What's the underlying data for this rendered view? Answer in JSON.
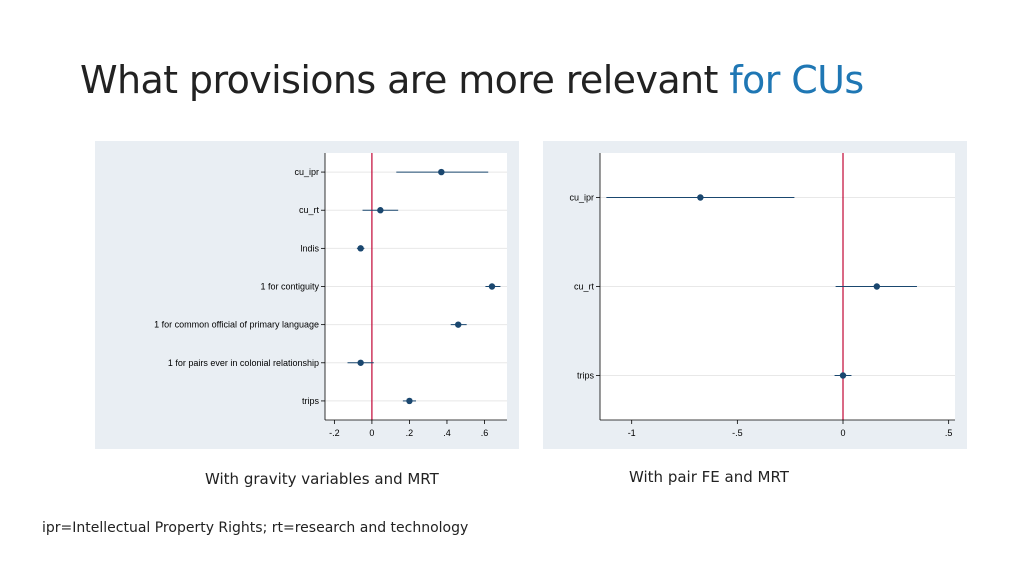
{
  "slide": {
    "title_main": "What provisions are more relevant ",
    "title_accent": "for CUs",
    "caption_left": "With gravity variables and MRT",
    "caption_right": "With pair FE and MRT",
    "footnote": "ipr=Intellectual Property Rights; rt=research and technology"
  },
  "colors": {
    "background_outer": "#e9eef3",
    "plot_background": "#ffffff",
    "marker": "#1a476f",
    "reference_line": "#c10534",
    "grid": "#e8e8e8",
    "axis": "#000000",
    "title_accent": "#1f77b4"
  },
  "chart_data": [
    {
      "type": "scatter",
      "subtype": "coefficient-plot",
      "title": "",
      "xlabel": "",
      "ylabel": "",
      "xlim": [
        -0.25,
        0.72
      ],
      "xticks": [
        -0.2,
        0,
        0.2,
        0.4,
        0.6
      ],
      "xtick_labels": [
        "-.2",
        "0",
        ".2",
        ".4",
        ".6"
      ],
      "reference_line_x": 0,
      "grid": true,
      "categories": [
        "cu_ipr",
        "cu_rt",
        "lndis",
        "1 for contiguity",
        "1 for common official of primary language",
        "1 for pairs ever in colonial relationship",
        "trips"
      ],
      "estimates": [
        0.37,
        0.045,
        -0.06,
        0.64,
        0.46,
        -0.06,
        0.2
      ],
      "ci_low": [
        0.13,
        -0.05,
        -0.08,
        0.605,
        0.42,
        -0.13,
        0.165
      ],
      "ci_high": [
        0.62,
        0.14,
        -0.04,
        0.685,
        0.505,
        0.01,
        0.235
      ]
    },
    {
      "type": "scatter",
      "subtype": "coefficient-plot",
      "title": "",
      "xlabel": "",
      "ylabel": "",
      "xlim": [
        -1.15,
        0.53
      ],
      "xticks": [
        -1,
        -0.5,
        0,
        0.5
      ],
      "xtick_labels": [
        "-1",
        "-.5",
        "0",
        ".5"
      ],
      "reference_line_x": 0,
      "grid": true,
      "categories": [
        "cu_ipr",
        "cu_rt",
        "trips"
      ],
      "estimates": [
        -0.675,
        0.16,
        0.0
      ],
      "ci_low": [
        -1.12,
        -0.035,
        -0.04
      ],
      "ci_high": [
        -0.23,
        0.35,
        0.04
      ]
    }
  ]
}
